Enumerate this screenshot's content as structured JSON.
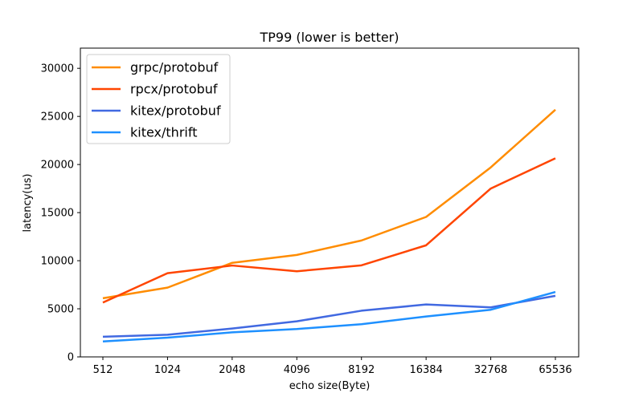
{
  "chart_data": {
    "type": "line",
    "title": "TP99 (lower is better)",
    "xlabel": "echo size(Byte)",
    "ylabel": "latency(us)",
    "categories": [
      "512",
      "1024",
      "2048",
      "4096",
      "8192",
      "16384",
      "32768",
      "65536"
    ],
    "ylim": [
      0,
      32100
    ],
    "yticks": [
      0,
      5000,
      10000,
      15000,
      20000,
      25000,
      30000
    ],
    "grid": false,
    "legend": "top-left",
    "series": [
      {
        "name": "grpc/protobuf",
        "color": "#ff8c00",
        "values": [
          6100,
          7200,
          9780,
          10600,
          12100,
          14550,
          19700,
          25700
        ]
      },
      {
        "name": "rpcx/protobuf",
        "color": "#ff4500",
        "values": [
          5650,
          8700,
          9500,
          8900,
          9520,
          11600,
          17500,
          20650
        ]
      },
      {
        "name": "kitex/protobuf",
        "color": "#4169e1",
        "values": [
          2100,
          2300,
          2950,
          3700,
          4800,
          5450,
          5150,
          6350
        ]
      },
      {
        "name": "kitex/thrift",
        "color": "#1e90ff",
        "values": [
          1600,
          2000,
          2550,
          2900,
          3400,
          4200,
          4900,
          6750
        ]
      }
    ]
  }
}
